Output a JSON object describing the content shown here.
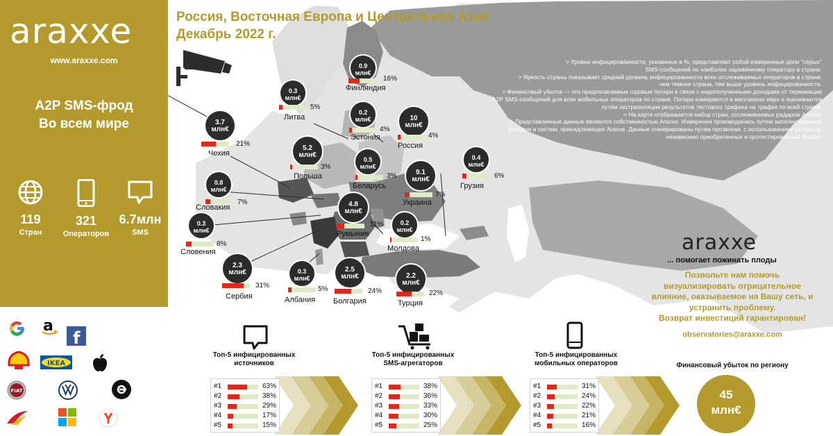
{
  "sidebar": {
    "logo": "araxxe",
    "website": "www.araxxe.com",
    "title_line1": "A2P SMS-фрод",
    "title_line2": "Во всем мире",
    "stats": [
      {
        "icon": "globe-icon",
        "value": "119",
        "label": "Стран"
      },
      {
        "icon": "mobile-phone-icon",
        "value": "321",
        "label": "Операторов"
      },
      {
        "icon": "sms-bubble-icon",
        "value": "6.7млн",
        "label": "SMS"
      }
    ],
    "brands": [
      "google-logo",
      "amazon-logo",
      "facebook-logo",
      "shell-logo",
      "ikea-logo",
      "apple-logo",
      "fiat-logo",
      "volkswagen-logo",
      "uber-logo",
      "iberia-logo",
      "microsoft-logo",
      "yandex-logo"
    ]
  },
  "map": {
    "title_line1": "Россия, Восточная Европа и Центральная Азия",
    "title_line2": "Декабрь 2022 г.",
    "notes": [
      "> Уровни инфицированности, указанные в %, представляют собой измеренные доли \"серых\"",
      "SMS-сообщений по наиболее зараженному оператору в стране.",
      "> Яркость страны показывает средний уровень инфицированности всех отслеживаемых операторов в стране:",
      "чем темнее страна, тем выше уровень инфицированности.",
      "> Финансовый убыток — это предполагаемые годовые потери в связи с недополученными доходами от терминации",
      "A2P SMS-сообщений для всех мобильных операторов по стране. Потери измеряются в миллионах евро и оцениваются",
      "путем экстраполяции результатов тестового трафика на трафик по всей стране.",
      "> На карте отображается набор стран, отслеживаемых радаром Araxxe.",
      "> Представленные данные являются собственностью Araxxe. Измерения производились путем запатентованных",
      "методов и систем, принадлежащих Araxxe. Данные сгенерированы путем прозвонки, с использованием ресурсов,",
      "независимо приобретенных и протестированных Araxxe."
    ],
    "unit": "млн€",
    "countries": [
      {
        "name": "Финляндия",
        "loss": "0.9",
        "pct": "16%",
        "value": 16
      },
      {
        "name": "Литва",
        "loss": "0.3",
        "pct": "5%",
        "value": 5
      },
      {
        "name": "Эстония",
        "loss": "0.2",
        "pct": "4%",
        "value": 4
      },
      {
        "name": "Россия",
        "loss": "10",
        "pct": "4%",
        "value": 4
      },
      {
        "name": "Чехия",
        "loss": "3.7",
        "pct": "21%",
        "value": 21
      },
      {
        "name": "Польша",
        "loss": "5.2",
        "pct": "3%",
        "value": 3
      },
      {
        "name": "Беларусь",
        "loss": "0.5",
        "pct": "3%",
        "value": 3
      },
      {
        "name": "Украина",
        "loss": "9.1",
        "pct": "7%",
        "value": 7
      },
      {
        "name": "Грузия",
        "loss": "0.4",
        "pct": "6%",
        "value": 6
      },
      {
        "name": "Словакия",
        "loss": "0.8",
        "pct": "7%",
        "value": 7
      },
      {
        "name": "Румыния",
        "loss": "4.8",
        "pct": "11%",
        "value": 11
      },
      {
        "name": "Словения",
        "loss": "0.3",
        "pct": "8%",
        "value": 8
      },
      {
        "name": "Молдова",
        "loss": "0.2",
        "pct": "1%",
        "value": 1
      },
      {
        "name": "Сербия",
        "loss": "2.3",
        "pct": "31%",
        "value": 31
      },
      {
        "name": "Албания",
        "loss": "0.3",
        "pct": "5%",
        "value": 5
      },
      {
        "name": "Болгария",
        "loss": "2.5",
        "pct": "24%",
        "value": 24
      },
      {
        "name": "Турция",
        "loss": "2.2",
        "pct": "22%",
        "value": 22
      }
    ]
  },
  "promo": {
    "logo": "araxxe",
    "tagline": "... помогает пожинать плоды",
    "body_lines": [
      "Позвольте нам помочь",
      "визуализировать отрицательное",
      "влияние, оказываемое на Вашу сеть, и",
      "устранить проблему.",
      "Возврат инвестиций гарантирован!"
    ],
    "email": "observatories@araxxe.com"
  },
  "top5": [
    {
      "icon": "sms-bubble-icon",
      "title_line1": "Топ-5 инфицированных",
      "title_line2": "источников",
      "rows": [
        {
          "rank": "#1",
          "pct": "63%",
          "value": 63
        },
        {
          "rank": "#2",
          "pct": "38%",
          "value": 38
        },
        {
          "rank": "#3",
          "pct": "29%",
          "value": 29
        },
        {
          "rank": "#4",
          "pct": "17%",
          "value": 17
        },
        {
          "rank": "#5",
          "pct": "15%",
          "value": 15
        }
      ]
    },
    {
      "icon": "shopping-cart-icon",
      "title_line1": "Топ-5 инфицированных",
      "title_line2": "SMS-агрегаторов",
      "rows": [
        {
          "rank": "#1",
          "pct": "38%",
          "value": 38
        },
        {
          "rank": "#2",
          "pct": "36%",
          "value": 36
        },
        {
          "rank": "#3",
          "pct": "33%",
          "value": 33
        },
        {
          "rank": "#4",
          "pct": "30%",
          "value": 30
        },
        {
          "rank": "#5",
          "pct": "25%",
          "value": 25
        }
      ]
    },
    {
      "icon": "mobile-phone-icon",
      "title_line1": "Топ-5 инфицированных",
      "title_line2": "мобильных операторов",
      "rows": [
        {
          "rank": "#1",
          "pct": "31%",
          "value": 31
        },
        {
          "rank": "#2",
          "pct": "24%",
          "value": 24
        },
        {
          "rank": "#3",
          "pct": "22%",
          "value": 22
        },
        {
          "rank": "#4",
          "pct": "21%",
          "value": 21
        },
        {
          "rank": "#5",
          "pct": "16%",
          "value": 16
        }
      ]
    }
  ],
  "financial": {
    "label": "Финансовый убыток по региону",
    "value": "45",
    "unit": "млн€"
  },
  "colors": {
    "accent": "#b49a2c",
    "infected": "#e2261a",
    "clean": "#dfeac8",
    "bubble": "#2c2c2c"
  }
}
